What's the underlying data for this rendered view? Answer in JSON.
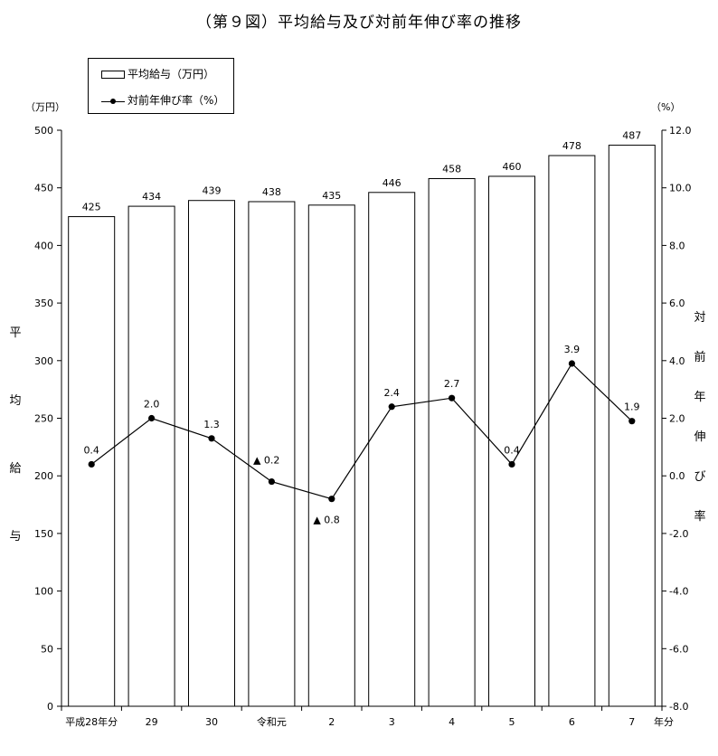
{
  "title": "（第９図）平均給与及び対前年伸び率の推移",
  "legend": {
    "bar_label": "平均給与（万円）",
    "line_label": "対前年伸び率（%）"
  },
  "units": {
    "left": "（万円）",
    "right": "（%）"
  },
  "left_axis_title": [
    "平",
    "均",
    "給",
    "与"
  ],
  "right_axis_title": [
    "対",
    "前",
    "年",
    "伸",
    "び",
    "率"
  ],
  "x_axis_suffix": "年分",
  "colors": {
    "bar_fill": "#ffffff",
    "stroke": "#000000"
  },
  "chart_data": {
    "type": "bar",
    "categories": [
      "平成28年分",
      "29",
      "30",
      "令和元",
      "2",
      "3",
      "4",
      "5",
      "6",
      "7"
    ],
    "series": [
      {
        "name": "平均給与（万円）",
        "type": "bar",
        "axis": "left",
        "values": [
          425,
          434,
          439,
          438,
          435,
          446,
          458,
          460,
          478,
          487
        ],
        "labels": [
          "425",
          "434",
          "439",
          "438",
          "435",
          "446",
          "458",
          "460",
          "478",
          "487"
        ]
      },
      {
        "name": "対前年伸び率（%）",
        "type": "line",
        "axis": "right",
        "values": [
          0.4,
          2.0,
          1.3,
          -0.2,
          -0.8,
          2.4,
          2.7,
          0.4,
          3.9,
          1.9
        ],
        "labels": [
          "0.4",
          "2.0",
          "1.3",
          "▲ 0.2",
          "▲ 0.8",
          "2.4",
          "2.7",
          "0.4",
          "3.9",
          "1.9"
        ]
      }
    ],
    "left_axis": {
      "ylim": [
        0,
        500
      ],
      "ticks": [
        0,
        50,
        100,
        150,
        200,
        250,
        300,
        350,
        400,
        450,
        500
      ]
    },
    "right_axis": {
      "ylim": [
        -8.0,
        12.0
      ],
      "ticks": [
        "-8.0",
        "-6.0",
        "-4.0",
        "-2.0",
        "0.0",
        "2.0",
        "4.0",
        "6.0",
        "8.0",
        "10.0",
        "12.0"
      ]
    },
    "grid": false
  }
}
